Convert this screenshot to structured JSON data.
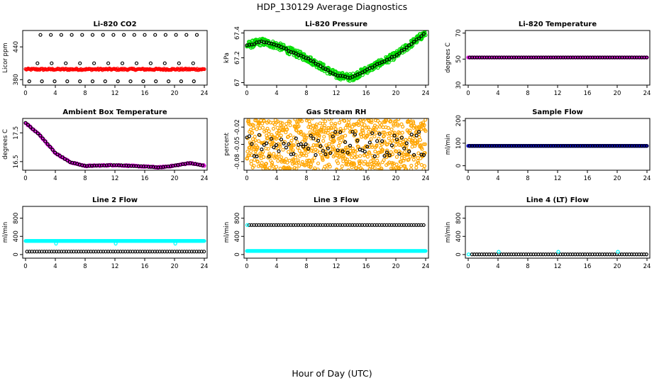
{
  "figure": {
    "title": "HDP_130129  Average Diagnostics",
    "xlabel": "Hour of Day (UTC)"
  },
  "colors": {
    "red": "#ff0000",
    "black": "#000000",
    "green": "#00dd00",
    "magenta": "#dd00dd",
    "orange": "#ffa500",
    "blue": "#0000cc",
    "cyan": "#00ffff"
  },
  "chart_data": [
    {
      "type": "scatter",
      "title": "Li-820 CO2",
      "ylabel": "Licor ppm",
      "xlim": [
        0,
        24
      ],
      "xticks": [
        0,
        4,
        8,
        12,
        16,
        20,
        24
      ],
      "ylim": [
        370,
        470
      ],
      "yticks": [
        380,
        440
      ],
      "series": [
        {
          "name": "low",
          "color": "#000000",
          "gen": "constant",
          "value": 377,
          "step": 1.7,
          "start": 0.5
        },
        {
          "name": "high",
          "color": "#000000",
          "gen": "constant",
          "value": 462,
          "step": 1.4,
          "start": 2.0
        },
        {
          "name": "mid",
          "color": "#000000",
          "gen": "constant",
          "value": 410,
          "step": 1.9,
          "start": 1.6
        },
        {
          "name": "band",
          "color": "#ff0000",
          "gen": "band",
          "value": 399,
          "amp": 1.5,
          "step": 0.12,
          "start": 0.0
        }
      ]
    },
    {
      "type": "scatter",
      "title": "Li-820 Pressure",
      "ylabel": "kPa",
      "xlim": [
        0,
        24
      ],
      "xticks": [
        0,
        4,
        8,
        12,
        16,
        20,
        24
      ],
      "ylim": [
        66.98,
        67.42
      ],
      "yticks": [
        67.0,
        67.2,
        67.4
      ],
      "series": [
        {
          "name": "samples",
          "color": "#00dd00",
          "gen": "curve",
          "amp": 0.03,
          "step": 0.05,
          "curve": [
            [
              0,
              67.3
            ],
            [
              2,
              67.33
            ],
            [
              4,
              67.3
            ],
            [
              8,
              67.2
            ],
            [
              12,
              67.06
            ],
            [
              14,
              67.04
            ],
            [
              16,
              67.1
            ],
            [
              20,
              67.22
            ],
            [
              24,
              67.4
            ]
          ]
        },
        {
          "name": "avg",
          "color": "#000000",
          "gen": "curve",
          "amp": 0.005,
          "step": 0.33,
          "curve": [
            [
              0,
              67.3
            ],
            [
              2,
              67.33
            ],
            [
              4,
              67.3
            ],
            [
              8,
              67.2
            ],
            [
              12,
              67.06
            ],
            [
              14,
              67.04
            ],
            [
              16,
              67.1
            ],
            [
              20,
              67.22
            ],
            [
              24,
              67.4
            ]
          ]
        }
      ]
    },
    {
      "type": "scatter",
      "title": "Li-820 Temperature",
      "ylabel": "degrees C",
      "xlim": [
        0,
        24
      ],
      "xticks": [
        0,
        4,
        8,
        12,
        16,
        20,
        24
      ],
      "ylim": [
        30,
        72
      ],
      "yticks": [
        30,
        50,
        70
      ],
      "series": [
        {
          "name": "samples",
          "color": "#dd00dd",
          "gen": "constant",
          "value": 51.3,
          "step": 0.12,
          "start": 0
        },
        {
          "name": "avg",
          "color": "#000000",
          "gen": "constant",
          "value": 51.3,
          "step": 0.33,
          "start": 0.2
        }
      ]
    },
    {
      "type": "scatter",
      "title": "Ambient Box Temperature",
      "ylabel": "degrees C",
      "xlim": [
        0,
        24
      ],
      "xticks": [
        0,
        4,
        8,
        12,
        16,
        20,
        24
      ],
      "ylim": [
        16.2,
        18.0
      ],
      "yticks": [
        16.5,
        17.5
      ],
      "series": [
        {
          "name": "samples",
          "color": "#dd00dd",
          "gen": "curve",
          "amp": 0.02,
          "step": 0.1,
          "curve": [
            [
              0,
              17.85
            ],
            [
              2,
              17.4
            ],
            [
              4,
              16.8
            ],
            [
              6,
              16.48
            ],
            [
              8,
              16.35
            ],
            [
              12,
              16.38
            ],
            [
              16,
              16.33
            ],
            [
              18,
              16.3
            ],
            [
              20,
              16.36
            ],
            [
              22,
              16.45
            ],
            [
              24,
              16.36
            ]
          ]
        },
        {
          "name": "avg",
          "color": "#000000",
          "gen": "curve",
          "amp": 0.005,
          "step": 0.33,
          "curve": [
            [
              0,
              17.85
            ],
            [
              2,
              17.4
            ],
            [
              4,
              16.8
            ],
            [
              6,
              16.48
            ],
            [
              8,
              16.35
            ],
            [
              12,
              16.38
            ],
            [
              16,
              16.33
            ],
            [
              18,
              16.3
            ],
            [
              20,
              16.36
            ],
            [
              22,
              16.45
            ],
            [
              24,
              16.36
            ]
          ]
        }
      ]
    },
    {
      "type": "scatter",
      "title": "Gas Stream RH",
      "ylabel": "percent",
      "xlim": [
        0,
        24
      ],
      "xticks": [
        0,
        4,
        8,
        12,
        16,
        20,
        24
      ],
      "ylim": [
        -0.095,
        -0.005
      ],
      "yticks": [
        -0.08,
        -0.05,
        -0.02
      ],
      "series": [
        {
          "name": "samples",
          "color": "#ffa500",
          "gen": "noise",
          "value": -0.05,
          "amp": 0.045,
          "step": 0.03
        },
        {
          "name": "avg",
          "color": "#000000",
          "gen": "noise",
          "value": -0.05,
          "amp": 0.022,
          "step": 0.33
        }
      ]
    },
    {
      "type": "scatter",
      "title": "Sample Flow",
      "ylabel": "ml/min",
      "xlim": [
        0,
        24
      ],
      "xticks": [
        0,
        4,
        8,
        12,
        16,
        20,
        24
      ],
      "ylim": [
        -20,
        210
      ],
      "yticks": [
        0,
        100,
        200
      ],
      "series": [
        {
          "name": "samples",
          "color": "#0000cc",
          "gen": "constant",
          "value": 88,
          "step": 0.06,
          "start": 0
        },
        {
          "name": "avg",
          "color": "#000000",
          "gen": "constant",
          "value": 88,
          "step": 0.33,
          "start": 0.2
        }
      ]
    },
    {
      "type": "scatter",
      "title": "Line 2 Flow",
      "ylabel": "ml/min",
      "xlim": [
        0,
        24
      ],
      "xticks": [
        0,
        4,
        8,
        12,
        16,
        20,
        24
      ],
      "ylim": [
        -80,
        1060
      ],
      "yticks": [
        0,
        400,
        800
      ],
      "series": [
        {
          "name": "upper",
          "color": "#00ffff",
          "gen": "constant",
          "value": 300,
          "step": 0.06,
          "start": 0
        },
        {
          "name": "upper-dips",
          "color": "#00ffff",
          "gen": "points",
          "x": [
            4.1,
            12.1,
            20.1
          ],
          "y": [
            240,
            240,
            240
          ]
        },
        {
          "name": "lower",
          "color": "#000000",
          "gen": "constant",
          "value": 65,
          "step": 0.33,
          "start": 0.2
        }
      ]
    },
    {
      "type": "scatter",
      "title": "Line 3 Flow",
      "ylabel": "ml/min",
      "xlim": [
        0,
        24
      ],
      "xticks": [
        0,
        4,
        8,
        12,
        16,
        20,
        24
      ],
      "ylim": [
        -80,
        1060
      ],
      "yticks": [
        0,
        400,
        800
      ],
      "series": [
        {
          "name": "upper",
          "color": "#000000",
          "gen": "constant",
          "value": 650,
          "step": 0.33,
          "start": 0.3
        },
        {
          "name": "upper-start",
          "color": "#00ffff",
          "gen": "points",
          "x": [
            0.05
          ],
          "y": [
            650
          ]
        },
        {
          "name": "lower",
          "color": "#00ffff",
          "gen": "constant",
          "value": 80,
          "step": 0.06,
          "start": 0
        }
      ]
    },
    {
      "type": "scatter",
      "title": "Line 4 (LT) Flow",
      "ylabel": "ml/min",
      "xlim": [
        0,
        24
      ],
      "xticks": [
        0,
        4,
        8,
        12,
        16,
        20,
        24
      ],
      "ylim": [
        -80,
        1060
      ],
      "yticks": [
        0,
        400,
        800
      ],
      "series": [
        {
          "name": "base",
          "color": "#000000",
          "gen": "constant",
          "value": 5,
          "step": 0.33,
          "start": 0.5
        },
        {
          "name": "spikes",
          "color": "#00ffff",
          "gen": "points",
          "x": [
            0.05,
            4.1,
            12.1,
            20.1
          ],
          "y": [
            5,
            60,
            60,
            60
          ]
        }
      ]
    }
  ]
}
